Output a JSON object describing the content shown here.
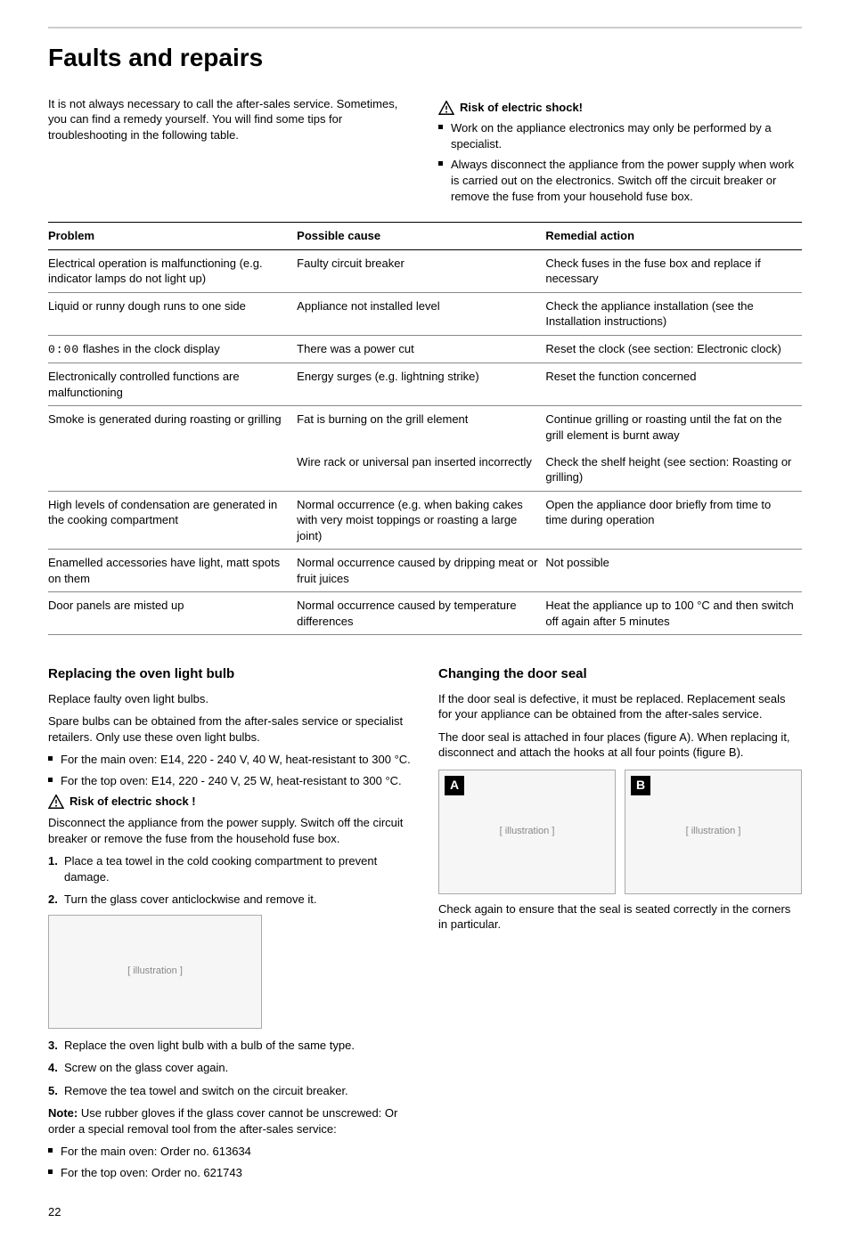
{
  "main_title": "Faults and repairs",
  "intro_left": "It is not always necessary to call the after-sales service. Sometimes, you can find a remedy yourself. You will find some tips for troubleshooting in the following table.",
  "risk_header_right": "Risk of electric shock!",
  "right_bullets": [
    "Work on the appliance electronics may only be performed by a specialist.",
    "Always disconnect the appliance from the power supply when work is carried out on the electronics. Switch off the circuit breaker or remove the fuse from your household fuse box."
  ],
  "table": {
    "headers": [
      "Problem",
      "Possible cause",
      "Remedial action"
    ],
    "rows": [
      {
        "problem": "Electrical operation is malfunctioning (e.g. indicator lamps do not light up)",
        "cause": "Faulty circuit breaker",
        "remedy": "Check fuses in the fuse box and replace if necessary"
      },
      {
        "problem": "Liquid or runny dough runs to one side",
        "cause": "Appliance not installed level",
        "remedy": "Check the appliance installation (see the Installation instructions)"
      },
      {
        "problem": "__CLOCK__ flashes in the clock display",
        "cause": "There was a power cut",
        "remedy": "Reset the clock (see section: Electronic clock)"
      },
      {
        "problem": "Electronically controlled functions are malfunctioning",
        "cause": "Energy surges (e.g. lightning strike)",
        "remedy": "Reset the function concerned"
      },
      {
        "problem": "Smoke is generated during roasting or grilling",
        "cause": "Fat is burning on the grill element",
        "remedy": "Continue grilling or roasting until the fat on the grill element is burnt away",
        "noborder": true
      },
      {
        "problem": "",
        "cause": "Wire rack or universal pan inserted incorrectly",
        "remedy": "Check the shelf height (see section: Roasting or grilling)"
      },
      {
        "problem": "High levels of condensation are generated in the cooking compartment",
        "cause": "Normal occurrence (e.g. when baking cakes with very moist toppings or roasting a large joint)",
        "remedy": "Open the appliance door briefly from time to time during operation"
      },
      {
        "problem": "Enamelled accessories have light, matt spots on them",
        "cause": "Normal occurrence caused by dripping meat or fruit juices",
        "remedy": "Not possible"
      },
      {
        "problem": "Door panels are misted up",
        "cause": "Normal occurrence caused by temperature differences",
        "remedy": "Heat the appliance up to 100 °C and then switch off again after 5 minutes"
      }
    ],
    "clock_text": "0:00"
  },
  "left_section": {
    "heading": "Replacing the oven light bulb",
    "p1": "Replace faulty oven light bulbs.",
    "p2": "Spare bulbs can be obtained from the after-sales service or specialist retailers. Only use these oven light bulbs.",
    "bulbs": [
      "For the main oven: E14, 220 - 240 V, 40 W, heat-resistant to 300 °C.",
      "For the top oven: E14, 220 - 240 V, 25 W, heat-resistant to 300 °C."
    ],
    "risk": "Risk of electric shock !",
    "risk_text": "Disconnect the appliance from the power supply. Switch off the circuit breaker or remove the fuse from the household fuse box.",
    "steps_a": [
      "Place a tea towel in the cold cooking compartment to prevent damage.",
      "Turn the glass cover anticlockwise and remove it."
    ],
    "steps_b": [
      "Replace the oven light bulb with a bulb of the same type.",
      "Screw on the glass cover again.",
      "Remove the tea towel and switch on the circuit breaker."
    ],
    "note_label": "Note:",
    "note_text": " Use rubber gloves if the glass cover cannot be unscrewed: Or order a special removal tool from the after-sales service:",
    "orders": [
      "For the main oven: Order no. 613634",
      "For the top oven: Order no. 621743"
    ]
  },
  "right_section": {
    "heading": "Changing the door seal",
    "p1": "If the door seal is defective, it must be replaced. Replacement seals for your appliance can be obtained from the after-sales service.",
    "p2": "The door seal is attached in four places (figure A). When replacing it, disconnect and attach the hooks at all four points (figure B).",
    "labels": {
      "a": "A",
      "b": "B"
    },
    "p3": "Check again to ensure that the seal is seated correctly in the corners in particular."
  },
  "page_number": "22",
  "diagram_placeholder": "[ illustration ]"
}
